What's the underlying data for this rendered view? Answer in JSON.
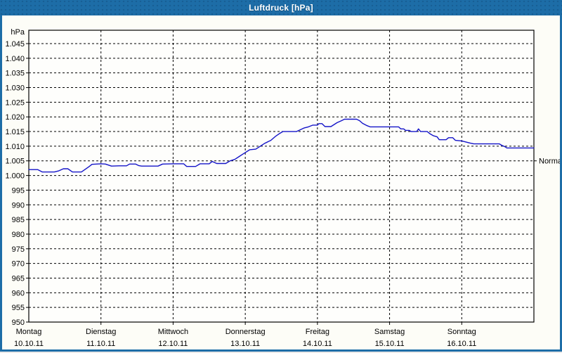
{
  "window": {
    "title": "Luftdruck [hPa]",
    "colors": {
      "titlebar": "#1d6da7",
      "border": "#1d6da7",
      "content_bg": "#fdfdf7",
      "plot_bg": "#fefefc",
      "axis": "#000000",
      "grid": "#000000",
      "line": "#1414c8",
      "title_text": "#ffffff"
    }
  },
  "chart_data": {
    "type": "line",
    "title": "Luftdruck [hPa]",
    "unit_label": "hPa",
    "ylabel": "hPa",
    "ylim": [
      950,
      1045
    ],
    "ytick_step": 5,
    "ytick_labels": [
      "1.045",
      "1.040",
      "1.035",
      "1.030",
      "1.025",
      "1.020",
      "1.015",
      "1.010",
      "1.005",
      "1.000",
      "995",
      "990",
      "985",
      "980",
      "975",
      "970",
      "965",
      "960",
      "955",
      "950"
    ],
    "x_range_hours": [
      0,
      168
    ],
    "grid": "dashed",
    "legend_position": "none",
    "days": [
      {
        "label": "Montag",
        "date": "10.10.11"
      },
      {
        "label": "Dienstag",
        "date": "11.10.11"
      },
      {
        "label": "Mittwoch",
        "date": "12.10.11"
      },
      {
        "label": "Donnerstag",
        "date": "13.10.11"
      },
      {
        "label": "Freitag",
        "date": "14.10.11"
      },
      {
        "label": "Samstag",
        "date": "15.10.11"
      },
      {
        "label": "Sonntag",
        "date": "16.10.11"
      }
    ],
    "normal_marker": {
      "label": "Normal",
      "value": 1005
    },
    "series": [
      {
        "name": "Luftdruck",
        "color": "#1414c8",
        "points_hours_hpa": [
          [
            0,
            1002
          ],
          [
            3,
            1002
          ],
          [
            4.5,
            1001.2
          ],
          [
            8.5,
            1001.2
          ],
          [
            10,
            1001.6
          ],
          [
            11.5,
            1002.3
          ],
          [
            13,
            1002.3
          ],
          [
            14.5,
            1001.2
          ],
          [
            17.5,
            1001.2
          ],
          [
            20,
            1003
          ],
          [
            21,
            1003.8
          ],
          [
            24,
            1004
          ],
          [
            25.5,
            1003.9
          ],
          [
            27.5,
            1003.2
          ],
          [
            30,
            1003.3
          ],
          [
            32.5,
            1003.3
          ],
          [
            33.5,
            1003.9
          ],
          [
            35.5,
            1003.9
          ],
          [
            36.5,
            1003.4
          ],
          [
            37.5,
            1003.2
          ],
          [
            43,
            1003.2
          ],
          [
            44.5,
            1003.9
          ],
          [
            48,
            1004
          ],
          [
            51.5,
            1004
          ],
          [
            52.5,
            1003.1
          ],
          [
            55.5,
            1003.1
          ],
          [
            57,
            1004
          ],
          [
            60,
            1004
          ],
          [
            61,
            1004.8
          ],
          [
            62.5,
            1004.1
          ],
          [
            65.5,
            1004.1
          ],
          [
            67,
            1005
          ],
          [
            68.5,
            1005.5
          ],
          [
            70,
            1006.5
          ],
          [
            71.5,
            1007.5
          ],
          [
            73.5,
            1008.8
          ],
          [
            75.5,
            1009
          ],
          [
            77,
            1010
          ],
          [
            78.5,
            1011
          ],
          [
            80.5,
            1012
          ],
          [
            82,
            1013.3
          ],
          [
            83.5,
            1014.4
          ],
          [
            84.5,
            1015
          ],
          [
            89,
            1015
          ],
          [
            91.5,
            1016.2
          ],
          [
            93,
            1016.6
          ],
          [
            94.5,
            1017.2
          ],
          [
            96,
            1017.2
          ],
          [
            96.5,
            1017.7
          ],
          [
            97.5,
            1017.7
          ],
          [
            98.5,
            1016.7
          ],
          [
            100.5,
            1016.7
          ],
          [
            102.5,
            1018
          ],
          [
            104,
            1018.7
          ],
          [
            105,
            1019.2
          ],
          [
            109,
            1019.2
          ],
          [
            110,
            1018.7
          ],
          [
            111,
            1017.8
          ],
          [
            112.5,
            1017
          ],
          [
            113.5,
            1016.6
          ],
          [
            120,
            1016.6
          ],
          [
            123,
            1016.6
          ],
          [
            123.7,
            1015.9
          ],
          [
            124.7,
            1015.9
          ],
          [
            125.3,
            1015.4
          ],
          [
            126.5,
            1015.4
          ],
          [
            127.2,
            1015
          ],
          [
            129,
            1015
          ],
          [
            129.6,
            1015.9
          ],
          [
            130.3,
            1015
          ],
          [
            132.5,
            1015
          ],
          [
            133.5,
            1014.2
          ],
          [
            134.5,
            1013.6
          ],
          [
            135.8,
            1013.2
          ],
          [
            136.5,
            1012.2
          ],
          [
            138.8,
            1012.2
          ],
          [
            139.6,
            1012.9
          ],
          [
            141,
            1012.9
          ],
          [
            141.9,
            1012
          ],
          [
            144,
            1011.8
          ],
          [
            145.5,
            1011.4
          ],
          [
            147,
            1011
          ],
          [
            148,
            1010.8
          ],
          [
            156.5,
            1010.8
          ],
          [
            157.3,
            1010.3
          ],
          [
            158.4,
            1009.8
          ],
          [
            159,
            1009.4
          ],
          [
            168,
            1009.4
          ]
        ]
      }
    ]
  }
}
